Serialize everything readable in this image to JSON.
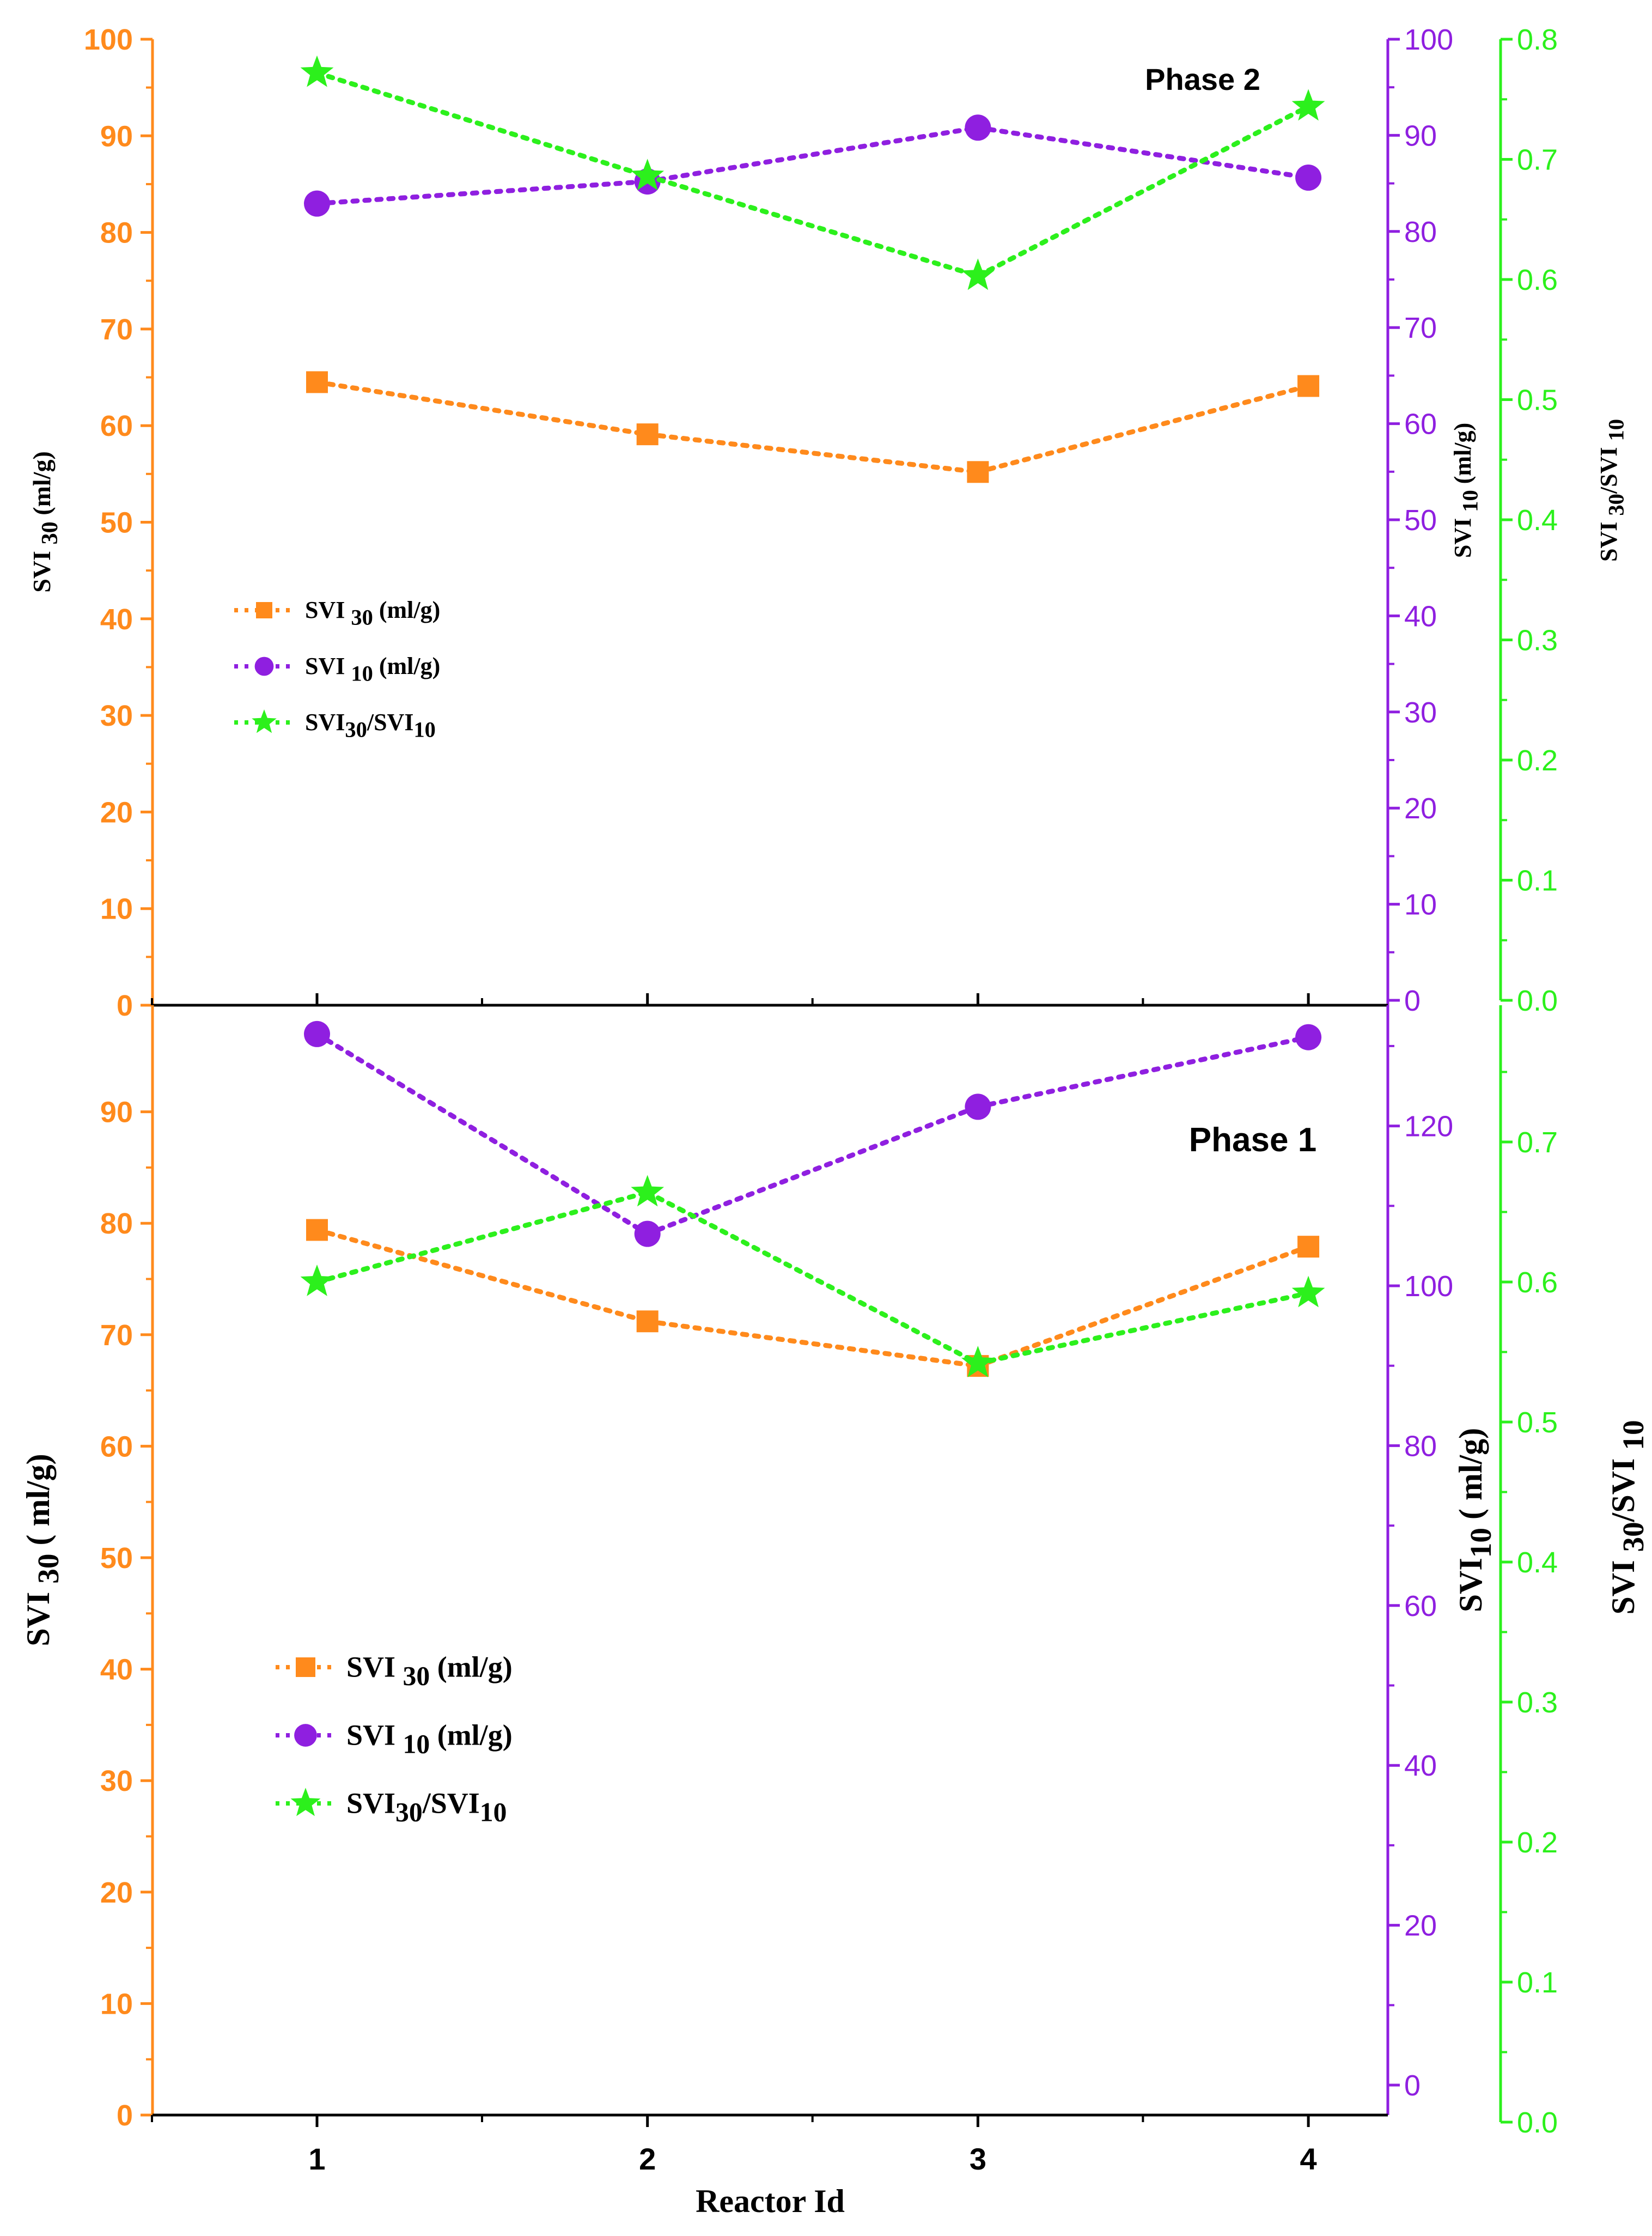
{
  "colors": {
    "svi30": "#ff8a1c",
    "svi10": "#8f1fe0",
    "ratio": "#2cf01c",
    "axis_black": "#000000"
  },
  "chart_data": [
    {
      "type": "line",
      "panel": "top",
      "title": "Phase 2",
      "xlabel": "",
      "categories": [
        "1",
        "2",
        "3",
        "4"
      ],
      "series": [
        {
          "name": "SVI 30 (ml/g)",
          "name_main": "SVI ",
          "name_sub": "30",
          "name_tail": " (ml/g)",
          "axis": "left",
          "marker": "square",
          "values": [
            64.5,
            59.1,
            55.2,
            64.1
          ]
        },
        {
          "name": "SVI 10 (ml/g)",
          "name_main": "SVI ",
          "name_sub": "10",
          "name_tail": " (ml/g)",
          "axis": "right1",
          "marker": "circle",
          "values": [
            82.9,
            85.2,
            90.8,
            85.6
          ]
        },
        {
          "name": "SVI30/SVI10",
          "name_main": "SVI",
          "name_sub": "30",
          "name_tail": "/SVI",
          "name_sub2": "10",
          "axis": "right2",
          "marker": "star",
          "values": [
            0.772,
            0.686,
            0.603,
            0.744
          ]
        }
      ],
      "left_axis": {
        "label_main": "SVI ",
        "label_sub": "30",
        "label_tail": " (ml/g)",
        "ylim": [
          0,
          100
        ],
        "ticks": [
          "0",
          "10",
          "20",
          "30",
          "40",
          "50",
          "60",
          "70",
          "80",
          "90",
          "100"
        ]
      },
      "right1_axis": {
        "label_main": "SVI ",
        "label_sub": "10",
        "label_tail": " (ml/g)",
        "ylim": [
          0,
          100
        ],
        "ticks": [
          "0",
          "10",
          "20",
          "30",
          "40",
          "50",
          "60",
          "70",
          "80",
          "90",
          "100"
        ]
      },
      "right2_axis": {
        "label_main": "SVI ",
        "label_sub": "30",
        "label_tail": "/SVI ",
        "label_sub2": "10",
        "ylim": [
          0,
          0.8
        ],
        "ticks": [
          "0.0",
          "0.1",
          "0.2",
          "0.3",
          "0.4",
          "0.5",
          "0.6",
          "0.7",
          "0.8"
        ]
      }
    },
    {
      "type": "line",
      "panel": "bottom",
      "title": "Phase 1",
      "xlabel": "Reactor Id",
      "categories": [
        "1",
        "2",
        "3",
        "4"
      ],
      "series": [
        {
          "name": "SVI 30 (ml/g)",
          "name_main": "SVI ",
          "name_sub": "30",
          "name_tail": " (ml/g)",
          "axis": "left",
          "marker": "square",
          "values": [
            79.4,
            71.2,
            67.2,
            77.9
          ]
        },
        {
          "name": "SVI 10 (ml/g)",
          "name_main": "SVI ",
          "name_sub": "10",
          "name_tail": " (ml/g)",
          "axis": "right1",
          "marker": "circle",
          "values": [
            131.5,
            106.5,
            122.4,
            131.1
          ]
        },
        {
          "name": "SVI30/SVI10",
          "name_main": "SVI",
          "name_sub": "30",
          "name_tail": "/SVI",
          "name_sub2": "10",
          "axis": "right2",
          "marker": "star",
          "values": [
            0.6,
            0.664,
            0.542,
            0.592
          ]
        }
      ],
      "left_axis": {
        "label_main": "SVI ",
        "label_sub": "30",
        "label_tail": " ( ml/g)",
        "ylim": [
          0,
          95
        ],
        "ticks": [
          "0",
          "10",
          "20",
          "30",
          "40",
          "50",
          "60",
          "70",
          "80",
          "90"
        ]
      },
      "right1_axis": {
        "label_main": "SVI",
        "label_sub": "10",
        "label_tail": " ( ml/g)",
        "ylim": [
          0,
          140
        ],
        "ticks": [
          "0",
          "20",
          "40",
          "60",
          "80",
          "100",
          "120"
        ]
      },
      "right2_axis": {
        "label_main": "SVI ",
        "label_sub": "30",
        "label_tail": "/SVI ",
        "label_sub2": "10",
        "ylim": [
          0,
          0.8
        ],
        "ticks": [
          "0.0",
          "0.1",
          "0.2",
          "0.3",
          "0.4",
          "0.5",
          "0.6",
          "0.7"
        ]
      }
    }
  ]
}
